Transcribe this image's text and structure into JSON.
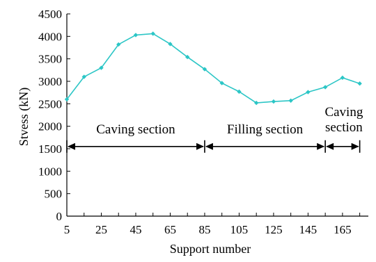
{
  "chart_data": {
    "type": "line",
    "xlabel": "Support number",
    "ylabel": "Stvess (kN)",
    "xlim": [
      5,
      180
    ],
    "ylim": [
      0,
      4500
    ],
    "x_ticks": [
      "5",
      "25",
      "45",
      "65",
      "85",
      "105",
      "125",
      "145",
      "165"
    ],
    "y_ticks": [
      "0",
      "500",
      "1000",
      "1500",
      "2000",
      "2500",
      "3000",
      "3500",
      "4000",
      "4500"
    ],
    "grid": false,
    "color": "#2cc6c6",
    "series": [
      {
        "x": [
          5,
          15,
          25,
          35,
          45,
          55,
          65,
          75,
          85,
          95,
          105,
          115,
          125,
          135,
          145,
          155,
          165,
          175
        ],
        "values": [
          2600,
          3100,
          3300,
          3820,
          4030,
          4060,
          3830,
          3540,
          3270,
          2960,
          2770,
          2520,
          2550,
          2570,
          2760,
          2870,
          3080,
          2950
        ]
      }
    ],
    "annotations": [
      {
        "text": "Caving section",
        "from": 5,
        "to": 85,
        "y": 1550
      },
      {
        "text": "Filling section",
        "from": 85,
        "to": 155,
        "y": 1550
      },
      {
        "text": "Caving\nsection",
        "from": 155,
        "to": 175,
        "y": 1550
      }
    ]
  }
}
